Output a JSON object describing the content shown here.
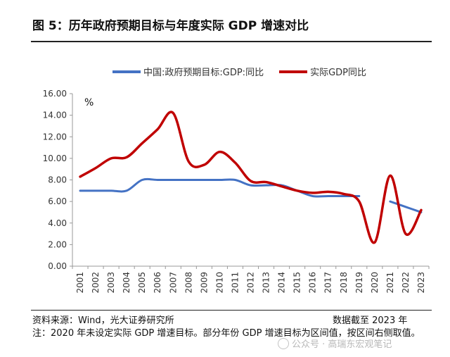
{
  "title": "图 5：历年政府预期目标与年度实际 GDP 增速对比",
  "source": "资料来源：Wind，光大证券研究所",
  "cutoff": "数据截至 2023 年",
  "note": "注：2020 年未设定实际 GDP 增速目标。部分年份 GDP 增速目标为区间值，按区间右侧取值。",
  "watermark": "公众号 · 高瑞东宏观笔记",
  "colors": {
    "target": "#4472C4",
    "actual": "#C00000"
  },
  "chart_data": {
    "type": "line",
    "unit_label": "%",
    "ylim": [
      0,
      16
    ],
    "yticks": [
      "0.00",
      "2.00",
      "4.00",
      "6.00",
      "8.00",
      "10.00",
      "12.00",
      "14.00",
      "16.00"
    ],
    "x": [
      "2001",
      "2002",
      "2003",
      "2004",
      "2005",
      "2006",
      "2007",
      "2008",
      "2009",
      "2010",
      "2011",
      "2012",
      "2013",
      "2014",
      "2015",
      "2016",
      "2017",
      "2018",
      "2019",
      "2020",
      "2021",
      "2022",
      "2023"
    ],
    "grid": false,
    "legend_position": "top",
    "series": [
      {
        "name": "中国:政府预期目标:GDP:同比",
        "color": "#4472C4",
        "values": [
          7,
          7,
          7,
          7,
          8,
          8,
          8,
          8,
          8,
          8,
          8,
          7.5,
          7.5,
          7.5,
          7,
          6.5,
          6.5,
          6.5,
          6.5,
          null,
          6,
          5.5,
          5
        ]
      },
      {
        "name": "实际GDP同比",
        "color": "#C00000",
        "values": [
          8.3,
          9.1,
          10.0,
          10.1,
          11.4,
          12.7,
          14.2,
          9.7,
          9.4,
          10.6,
          9.6,
          7.9,
          7.8,
          7.4,
          7.0,
          6.8,
          6.9,
          6.7,
          6.0,
          2.2,
          8.4,
          3.0,
          5.2
        ]
      }
    ]
  }
}
